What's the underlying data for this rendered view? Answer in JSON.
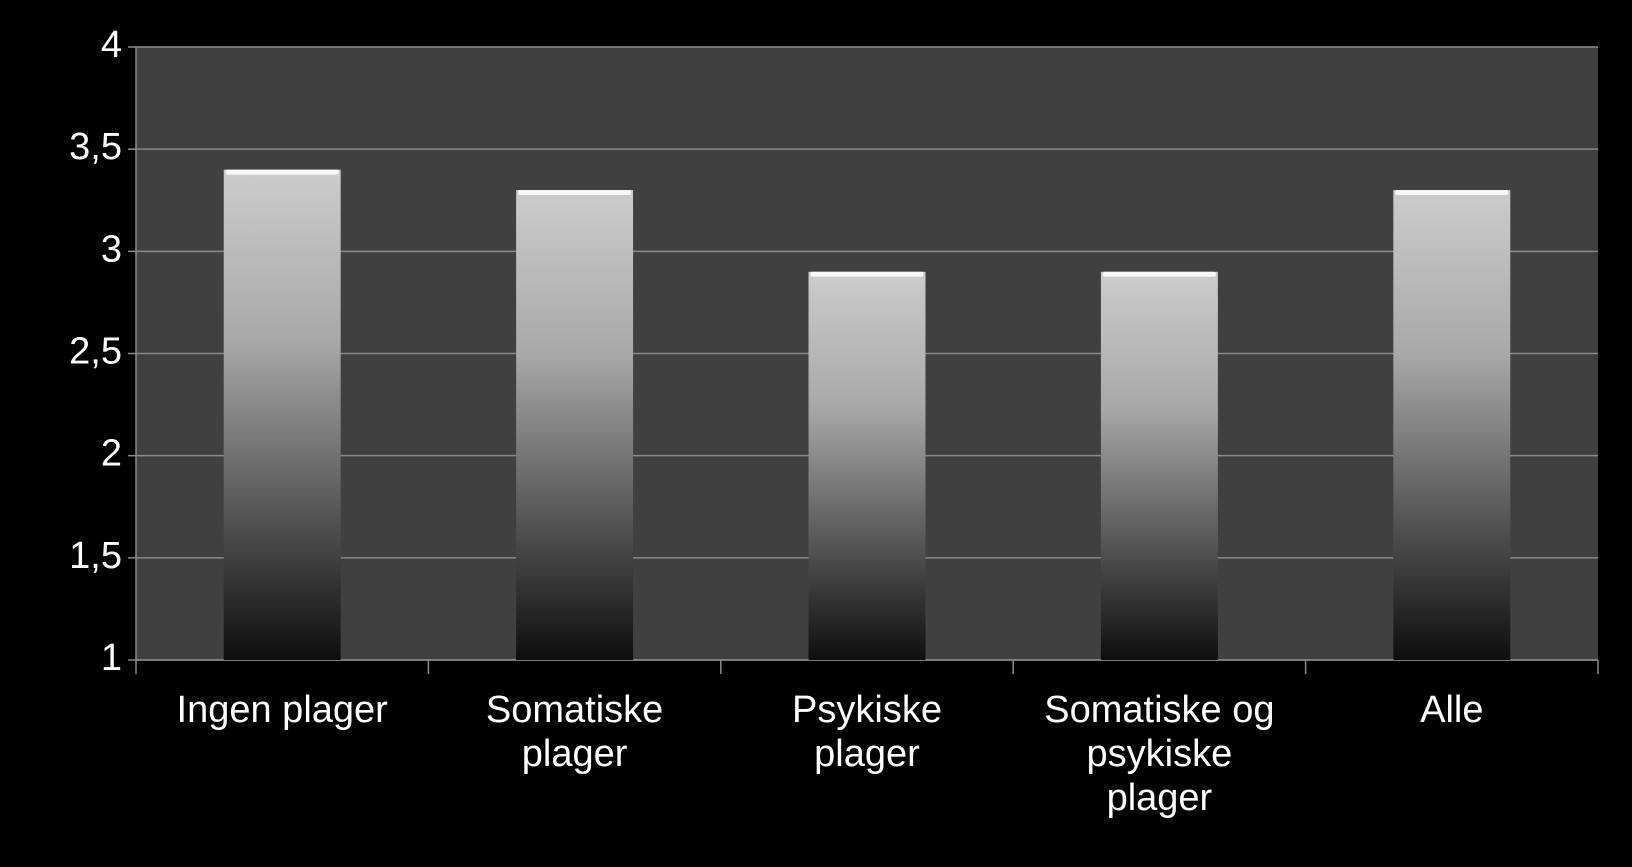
{
  "chart_data": {
    "type": "bar",
    "categories": [
      "Ingen plager",
      "Somatiske plager",
      "Psykiske plager",
      "Somatiske og psykiske plager",
      "Alle"
    ],
    "values": [
      3.4,
      3.3,
      2.9,
      2.9,
      3.3
    ],
    "color": "#cccccc",
    "ylim": [
      1,
      4
    ],
    "yticks": [
      1,
      {
        "value": 1.5,
        "label": "1,5"
      },
      2,
      {
        "value": 2.5,
        "label": "2,5"
      },
      3,
      {
        "value": 3.5,
        "label": "3,5"
      },
      4
    ],
    "grid": true
  }
}
